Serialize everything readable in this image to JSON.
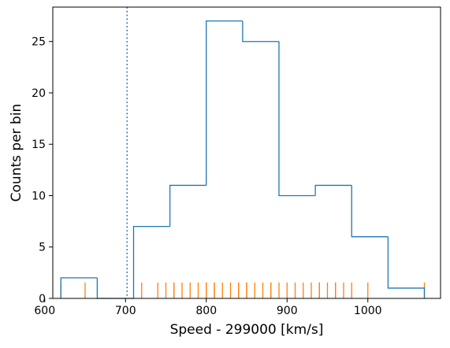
{
  "chart_data": {
    "type": "histogram",
    "xlabel": "Speed - 299000 [km/s]",
    "ylabel": "Counts per bin",
    "xlim": [
      610,
      1090
    ],
    "ylim": [
      0,
      28.35
    ],
    "xticks": [
      600,
      700,
      800,
      900,
      1000
    ],
    "yticks": [
      0,
      5,
      10,
      15,
      20,
      25
    ],
    "grid": false,
    "histogram": {
      "color": "#1f77b4",
      "bin_edges": [
        620,
        665,
        710,
        755,
        800,
        845,
        890,
        935,
        980,
        1025,
        1070
      ],
      "counts": [
        2,
        0,
        7,
        11,
        27,
        25,
        10,
        11,
        6,
        1
      ]
    },
    "reference_line": {
      "x": 702,
      "style": "dotted",
      "color": "#1f77b4"
    },
    "rug": {
      "color": "#ff7f0e",
      "height_in_counts": 1.55,
      "values": [
        620,
        650,
        720,
        740,
        750,
        760,
        760,
        770,
        780,
        790,
        800,
        800,
        810,
        810,
        820,
        830,
        840,
        840,
        850,
        850,
        860,
        870,
        880,
        880,
        890,
        900,
        910,
        920,
        930,
        940,
        940,
        950,
        960,
        960,
        970,
        980,
        1000,
        1070
      ]
    }
  }
}
